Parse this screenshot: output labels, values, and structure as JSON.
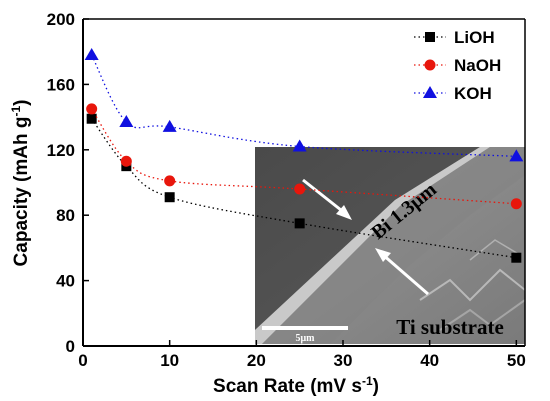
{
  "chart_data": {
    "type": "scatter",
    "xlabel": "Scan Rate (mV s",
    "xlabel_sup": "-1",
    "xlabel_close": ")",
    "ylabel": "Capacity (mAh g",
    "ylabel_sup": "-1",
    "ylabel_close": ")",
    "xlim": [
      0,
      51
    ],
    "ylim": [
      0,
      200
    ],
    "xticks": [
      0,
      10,
      20,
      30,
      40,
      50
    ],
    "yticks": [
      0,
      40,
      80,
      120,
      160,
      200
    ],
    "x": [
      1,
      5,
      10,
      25,
      50
    ],
    "series": [
      {
        "name": "LiOH",
        "marker": "square",
        "color": "#000000",
        "values": [
          139,
          110,
          91,
          75,
          54
        ]
      },
      {
        "name": "NaOH",
        "marker": "circle",
        "color": "#e8160c",
        "values": [
          145,
          113,
          101,
          96,
          87
        ]
      },
      {
        "name": "KOH",
        "marker": "triangle",
        "color": "#1010e0",
        "values": [
          178,
          137,
          134,
          122,
          116
        ]
      }
    ],
    "legend": "top-right",
    "grid": false,
    "inset": {
      "label_film": "Bi 1.3μm",
      "label_substrate": "Ti substrate",
      "scale_bar": "5μm"
    }
  }
}
